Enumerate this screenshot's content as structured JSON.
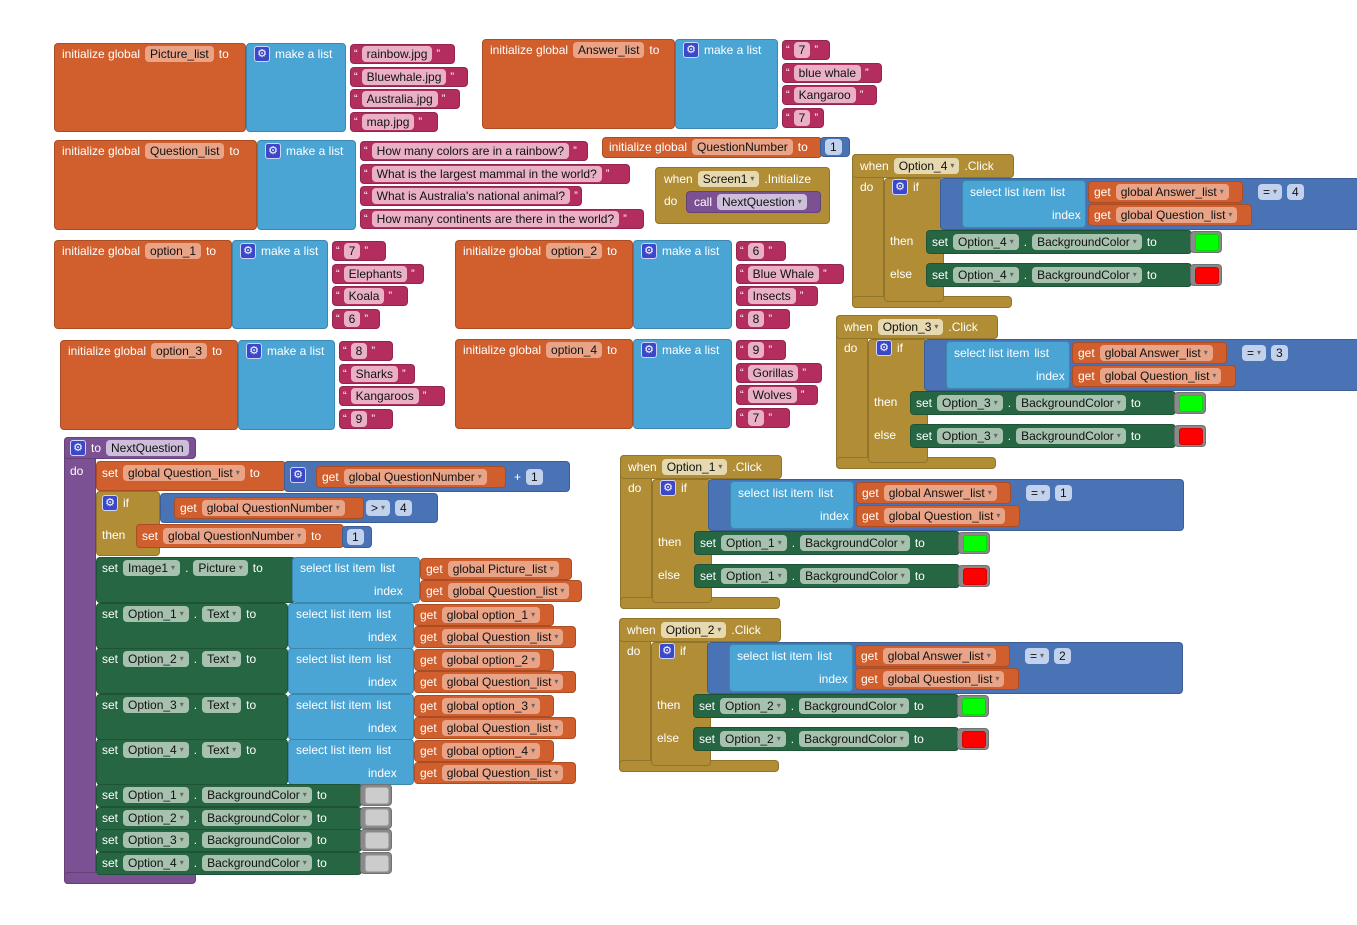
{
  "labels": {
    "init": "initialize global",
    "to": "to",
    "make_list": "make a list",
    "when": "when",
    "do": "do",
    "if": "if",
    "then": "then",
    "else": "else",
    "set": "set",
    "get": "get",
    "select": "select list item",
    "list": "list",
    "index": "index",
    "call": "call",
    "click": ".Click",
    "initialize": ".Initialize",
    "dot": ".",
    "plus": "+"
  },
  "globals": [
    {
      "name": "Picture_list",
      "items": [
        "rainbow.jpg",
        "Bluewhale.jpg",
        "Australia.jpg",
        "map.jpg"
      ]
    },
    {
      "name": "Answer_list",
      "items": [
        "7",
        "blue whale",
        "Kangaroo",
        "7"
      ]
    },
    {
      "name": "Question_list",
      "items": [
        "How many colors are in a rainbow?",
        "What is the largest mammal in the world?",
        "What is Australia's national animal?",
        "How many continents are there in the world?"
      ]
    },
    {
      "name": "option_1",
      "items": [
        "7",
        "Elephants",
        "Koala",
        "6"
      ]
    },
    {
      "name": "option_2",
      "items": [
        "6",
        "Blue Whale",
        "Insects",
        "8"
      ]
    },
    {
      "name": "option_3",
      "items": [
        "8",
        "Sharks",
        "Kangaroos",
        "9"
      ]
    },
    {
      "name": "option_4",
      "items": [
        "9",
        "Gorillas",
        "Wolves",
        "7"
      ]
    }
  ],
  "question_number": {
    "name": "QuestionNumber",
    "value": "1"
  },
  "screen_initialize": {
    "component": "Screen1",
    "procedure": "NextQuestion"
  },
  "events": [
    {
      "component": "Option_4",
      "list_var": "global Answer_list",
      "index_var": "global Question_list",
      "operator": "=",
      "compare_value": "4",
      "property": "BackgroundColor",
      "then_color": "#00FF00",
      "else_color": "#FF0000"
    },
    {
      "component": "Option_3",
      "list_var": "global Answer_list",
      "index_var": "global Question_list",
      "operator": "=",
      "compare_value": "3",
      "property": "BackgroundColor",
      "then_color": "#00FF00",
      "else_color": "#FF0000"
    },
    {
      "component": "Option_1",
      "list_var": "global Answer_list",
      "index_var": "global Question_list",
      "operator": "=",
      "compare_value": "1",
      "property": "BackgroundColor",
      "then_color": "#00FF00",
      "else_color": "#FF0000"
    },
    {
      "component": "Option_2",
      "list_var": "global Answer_list",
      "index_var": "global Question_list",
      "operator": "=",
      "compare_value": "2",
      "property": "BackgroundColor",
      "then_color": "#00FF00",
      "else_color": "#FF0000"
    }
  ],
  "procedure": {
    "name": "NextQuestion",
    "set_var": "global Question_list",
    "get_var": "global QuestionNumber",
    "plus_value": "1",
    "if_var": "global QuestionNumber",
    "if_operator": ">",
    "if_value": "4",
    "then_var": "global QuestionNumber",
    "then_value": "1",
    "picture_set": {
      "component": "Image1",
      "property": "Picture",
      "list_var": "global Picture_list",
      "index_var": "global Question_list"
    },
    "text_sets": [
      {
        "component": "Option_1",
        "property": "Text",
        "list_var": "global option_1",
        "index_var": "global Question_list"
      },
      {
        "component": "Option_2",
        "property": "Text",
        "list_var": "global option_2",
        "index_var": "global Question_list"
      },
      {
        "component": "Option_3",
        "property": "Text",
        "list_var": "global option_3",
        "index_var": "global Question_list"
      },
      {
        "component": "Option_4",
        "property": "Text",
        "list_var": "global option_4",
        "index_var": "global Question_list"
      }
    ],
    "color_sets": [
      {
        "component": "Option_1",
        "property": "BackgroundColor",
        "color": "#CCCCCC"
      },
      {
        "component": "Option_2",
        "property": "BackgroundColor",
        "color": "#CCCCCC"
      },
      {
        "component": "Option_3",
        "property": "BackgroundColor",
        "color": "#CCCCCC"
      },
      {
        "component": "Option_4",
        "property": "BackgroundColor",
        "color": "#CCCCCC"
      }
    ]
  }
}
